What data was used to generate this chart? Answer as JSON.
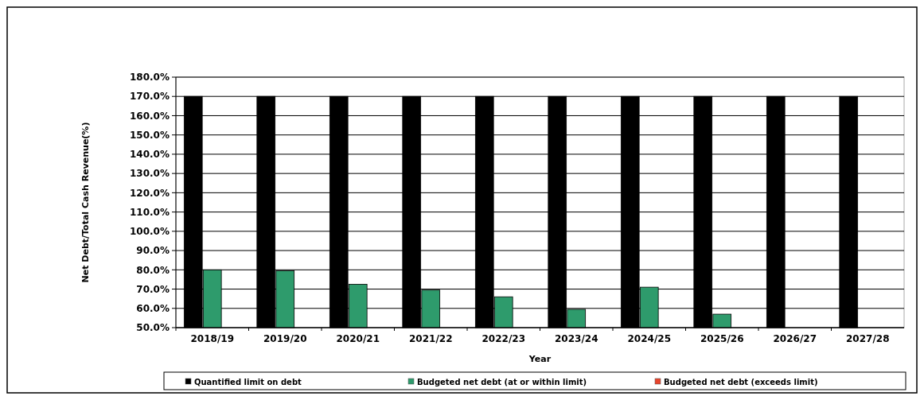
{
  "chart_data": {
    "type": "bar",
    "xlabel": "Year",
    "ylabel": "Net Debt/Total Cash Revenue(%)",
    "categories": [
      "2018/19",
      "2019/20",
      "2020/21",
      "2021/22",
      "2022/23",
      "2023/24",
      "2024/25",
      "2025/26",
      "2026/27",
      "2027/28"
    ],
    "series": [
      {
        "name": "Quantified limit on debt",
        "color": "#000000",
        "values": [
          170,
          170,
          170,
          170,
          170,
          170,
          170,
          170,
          170,
          170
        ]
      },
      {
        "name": "Budgeted net debt (at or within limit)",
        "color": "#2e9b6c",
        "values": [
          80,
          79.5,
          72.5,
          69.5,
          66,
          59.5,
          71,
          57,
          null,
          null
        ]
      },
      {
        "name": "Budgeted net debt (exceeds limit)",
        "color": "#e8452c",
        "values": [
          null,
          null,
          null,
          null,
          null,
          null,
          null,
          null,
          null,
          null
        ]
      }
    ],
    "ylim": [
      50,
      180
    ],
    "yticks": [
      {
        "value": 50,
        "label": "50.0%"
      },
      {
        "value": 60,
        "label": "60.0%"
      },
      {
        "value": 70,
        "label": "70.0%"
      },
      {
        "value": 80,
        "label": "80.0%"
      },
      {
        "value": 90,
        "label": "90.0%"
      },
      {
        "value": 100,
        "label": "100.0%"
      },
      {
        "value": 110,
        "label": "110.0%"
      },
      {
        "value": 120,
        "label": "120.0%"
      },
      {
        "value": 130,
        "label": "130.0%"
      },
      {
        "value": 140,
        "label": "140.0%"
      },
      {
        "value": 150,
        "label": "150.0%"
      },
      {
        "value": 160,
        "label": "160.0%"
      },
      {
        "value": 170,
        "label": "170.0%"
      },
      {
        "value": 180,
        "label": "180.0%"
      }
    ],
    "grid": "y",
    "legend": "bottom"
  }
}
